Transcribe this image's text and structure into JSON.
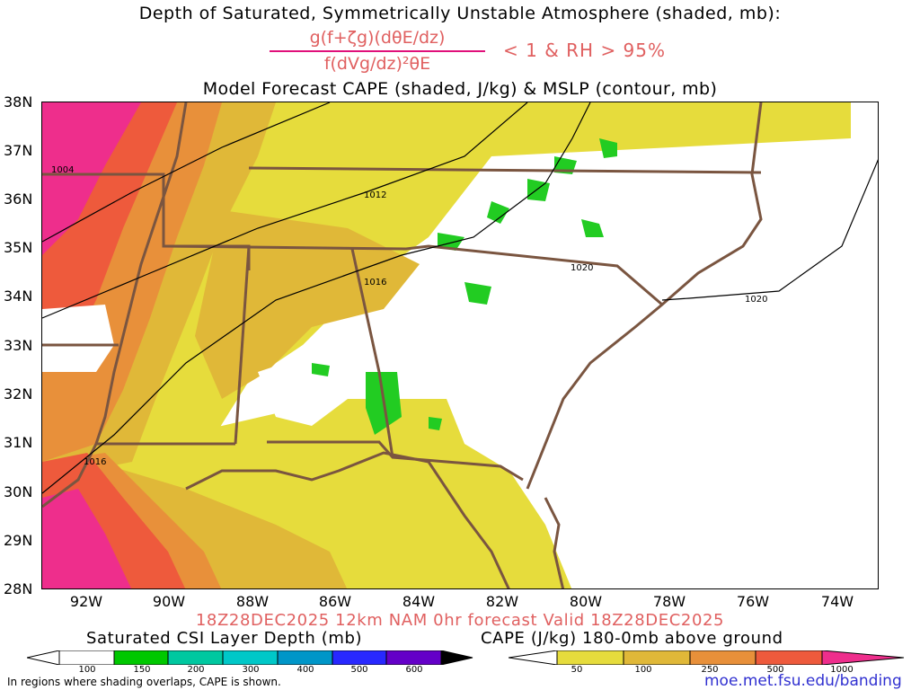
{
  "titles": {
    "line1": "Depth of Saturated, Symmetrically Unstable Atmosphere (shaded, mb):",
    "formula_numerator": "g(f+ζg)(dθE/dz)",
    "formula_denominator": "f(dVg/dz)²θE",
    "condition": "< 1 & RH > 95%",
    "line3": "Model Forecast CAPE (shaded, J/kg) & MSLP (contour, mb)",
    "valid": "18Z28DEC2025 12km NAM 0hr forecast Valid 18Z28DEC2025"
  },
  "map": {
    "lat_labels": [
      "38N",
      "37N",
      "36N",
      "35N",
      "34N",
      "33N",
      "32N",
      "31N",
      "30N",
      "29N",
      "28N"
    ],
    "lon_labels": [
      "92W",
      "90W",
      "88W",
      "86W",
      "84W",
      "82W",
      "80W",
      "78W",
      "76W",
      "74W"
    ],
    "isobar_labels": [
      "1004",
      "1012",
      "1016",
      "1016",
      "1020",
      "1020"
    ],
    "colors": {
      "border": "#7a5540",
      "isobar": "#000000",
      "cape_50": "#e6dc3c",
      "cape_100": "#e0b838",
      "cape_250": "#e8903a",
      "cape_500": "#ee5a3c",
      "cape_1000": "#ee2e8c",
      "csi": "#22cc22"
    }
  },
  "legend": {
    "csi_title": "Saturated CSI Layer Depth (mb)",
    "csi_ticks": [
      "100",
      "150",
      "200",
      "300",
      "400",
      "500",
      "600"
    ],
    "csi_colors": [
      "#ffffff",
      "#00c800",
      "#00c8a0",
      "#00c8c8",
      "#0096c8",
      "#2828ff",
      "#6400c8",
      "#000000"
    ],
    "cape_title": "CAPE (J/kg) 180-0mb above ground",
    "cape_ticks": [
      "50",
      "100",
      "250",
      "500",
      "1000"
    ],
    "cape_colors": [
      "#ffffff",
      "#e6dc3c",
      "#e0b838",
      "#e8903a",
      "#ee5a3c",
      "#ee2e8c"
    ]
  },
  "footer": {
    "note": "In regions where shading overlaps, CAPE is shown.",
    "url": "moe.met.fsu.edu/banding"
  }
}
